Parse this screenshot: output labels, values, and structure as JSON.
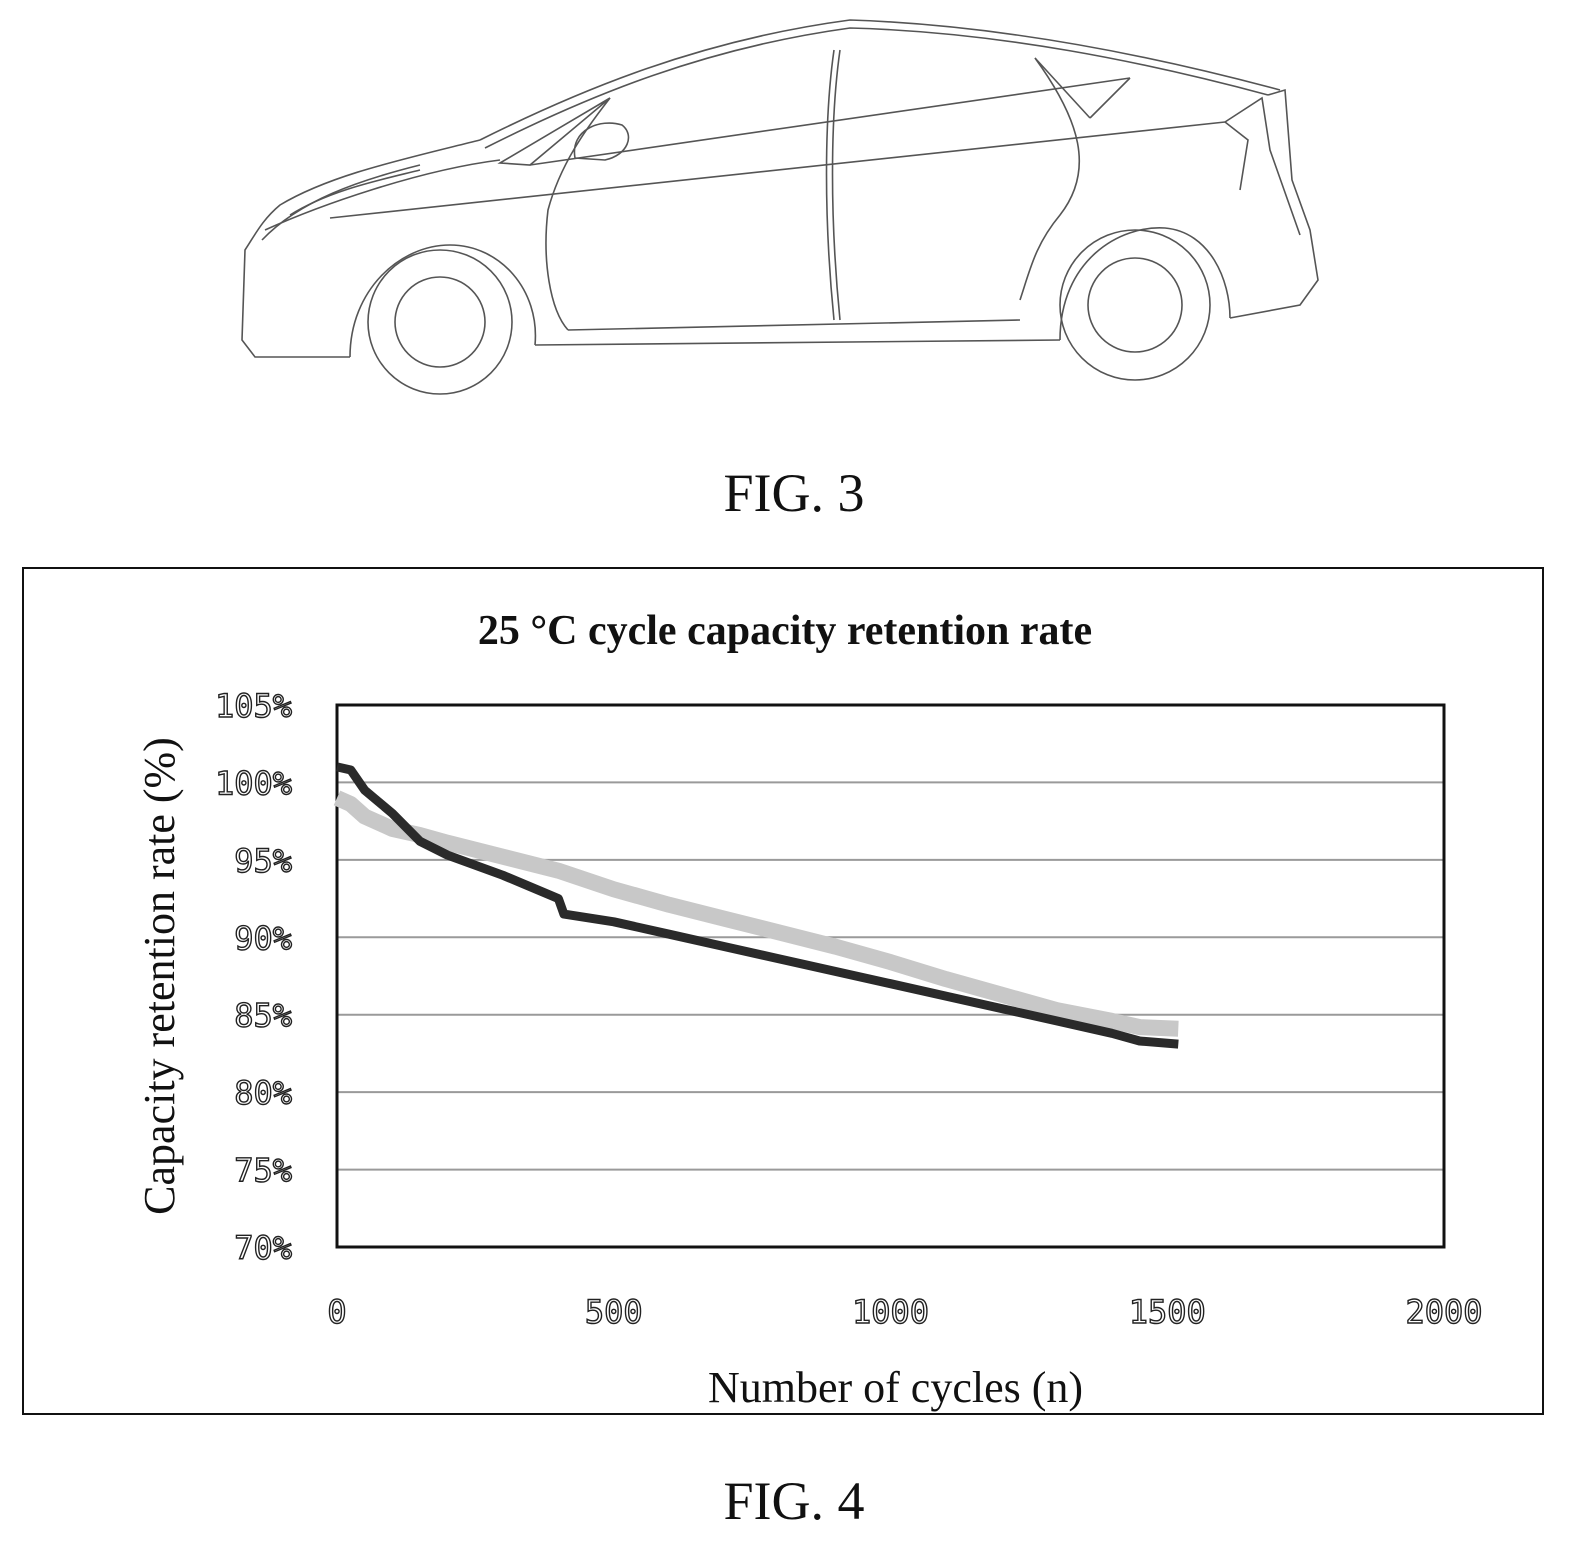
{
  "figures": {
    "fig3_caption": "FIG. 3",
    "fig4_caption": "FIG. 4"
  },
  "illustration": {
    "subject": "car-side-view-line-drawing"
  },
  "colors": {
    "series_dark": "#2a2a2a",
    "series_light": "#c8c8c8",
    "grid": "#9a9a9a",
    "frame": "#111111"
  },
  "chart_data": {
    "type": "line",
    "title": "25 °C cycle capacity retention rate",
    "xlabel": "Number of cycles (n)",
    "ylabel": "Capacity retention rate (%)",
    "xlim": [
      0,
      2000
    ],
    "ylim": [
      70,
      105
    ],
    "x_ticks": [
      "0",
      "500",
      "1000",
      "1500",
      "2000"
    ],
    "y_ticks": [
      "70%",
      "75%",
      "80%",
      "85%",
      "90%",
      "95%",
      "100%",
      "105%"
    ],
    "grid": "horizontal",
    "legend": "none",
    "series": [
      {
        "color": "#2a2a2a",
        "x": [
          0,
          25,
          50,
          100,
          150,
          200,
          300,
          400,
          410,
          500,
          600,
          700,
          800,
          900,
          1000,
          1100,
          1200,
          1300,
          1400,
          1450,
          1520
        ],
        "y": [
          101,
          100.8,
          99.5,
          98,
          96.2,
          95.3,
          94,
          92.5,
          91.5,
          91,
          90.2,
          89.4,
          88.6,
          87.8,
          87,
          86.2,
          85.4,
          84.6,
          83.8,
          83.3,
          83.1
        ]
      },
      {
        "color": "#c8c8c8",
        "x": [
          0,
          25,
          50,
          100,
          150,
          200,
          300,
          400,
          500,
          600,
          700,
          800,
          900,
          1000,
          1100,
          1200,
          1300,
          1400,
          1450,
          1520
        ],
        "y": [
          99,
          98.6,
          97.8,
          97,
          96.6,
          96.1,
          95.2,
          94.3,
          93.1,
          92.1,
          91.2,
          90.3,
          89.4,
          88.4,
          87.3,
          86.3,
          85.3,
          84.6,
          84.2,
          84.1
        ]
      }
    ]
  }
}
